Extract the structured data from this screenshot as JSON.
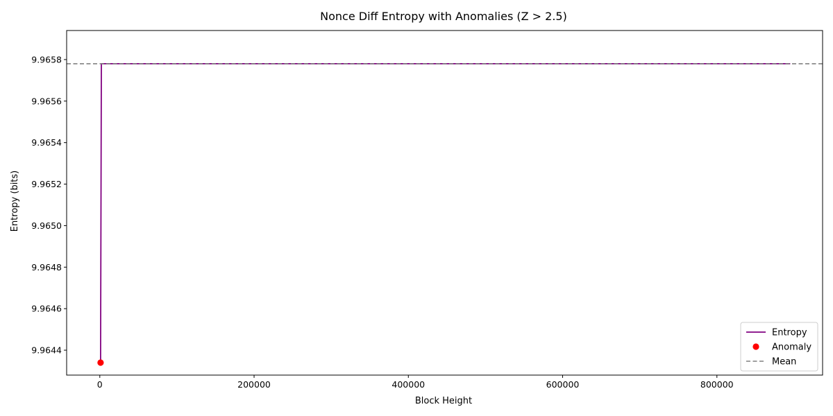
{
  "chart_data": {
    "type": "line",
    "title": "Nonce Diff Entropy with Anomalies (Z > 2.5)",
    "xlabel": "Block Height",
    "ylabel": "Entropy (bits)",
    "xlim": [
      -43000,
      937000
    ],
    "ylim": [
      9.96428,
      9.96594
    ],
    "xticks": [
      0,
      200000,
      400000,
      600000,
      800000
    ],
    "xtick_labels": [
      "0",
      "200000",
      "400000",
      "600000",
      "800000"
    ],
    "yticks": [
      9.9644,
      9.9646,
      9.9648,
      9.965,
      9.9652,
      9.9654,
      9.9656,
      9.9658
    ],
    "ytick_labels": [
      "9.9644",
      "9.9646",
      "9.9648",
      "9.9650",
      "9.9652",
      "9.9654",
      "9.9656",
      "9.9658"
    ],
    "grid": false,
    "legend_position": "lower-right",
    "series": [
      {
        "name": "Entropy",
        "kind": "line",
        "color": "#800080",
        "x": [
          1000,
          2000,
          895000
        ],
        "y": [
          9.96434,
          9.96578,
          9.96578
        ]
      },
      {
        "name": "Anomaly",
        "kind": "scatter",
        "color": "#ff0000",
        "x": [
          1000
        ],
        "y": [
          9.96434
        ]
      },
      {
        "name": "Mean",
        "kind": "hline",
        "color": "#808080",
        "dash": true,
        "y": 9.96578
      }
    ],
    "legend": [
      "Entropy",
      "Anomaly",
      "Mean"
    ]
  }
}
